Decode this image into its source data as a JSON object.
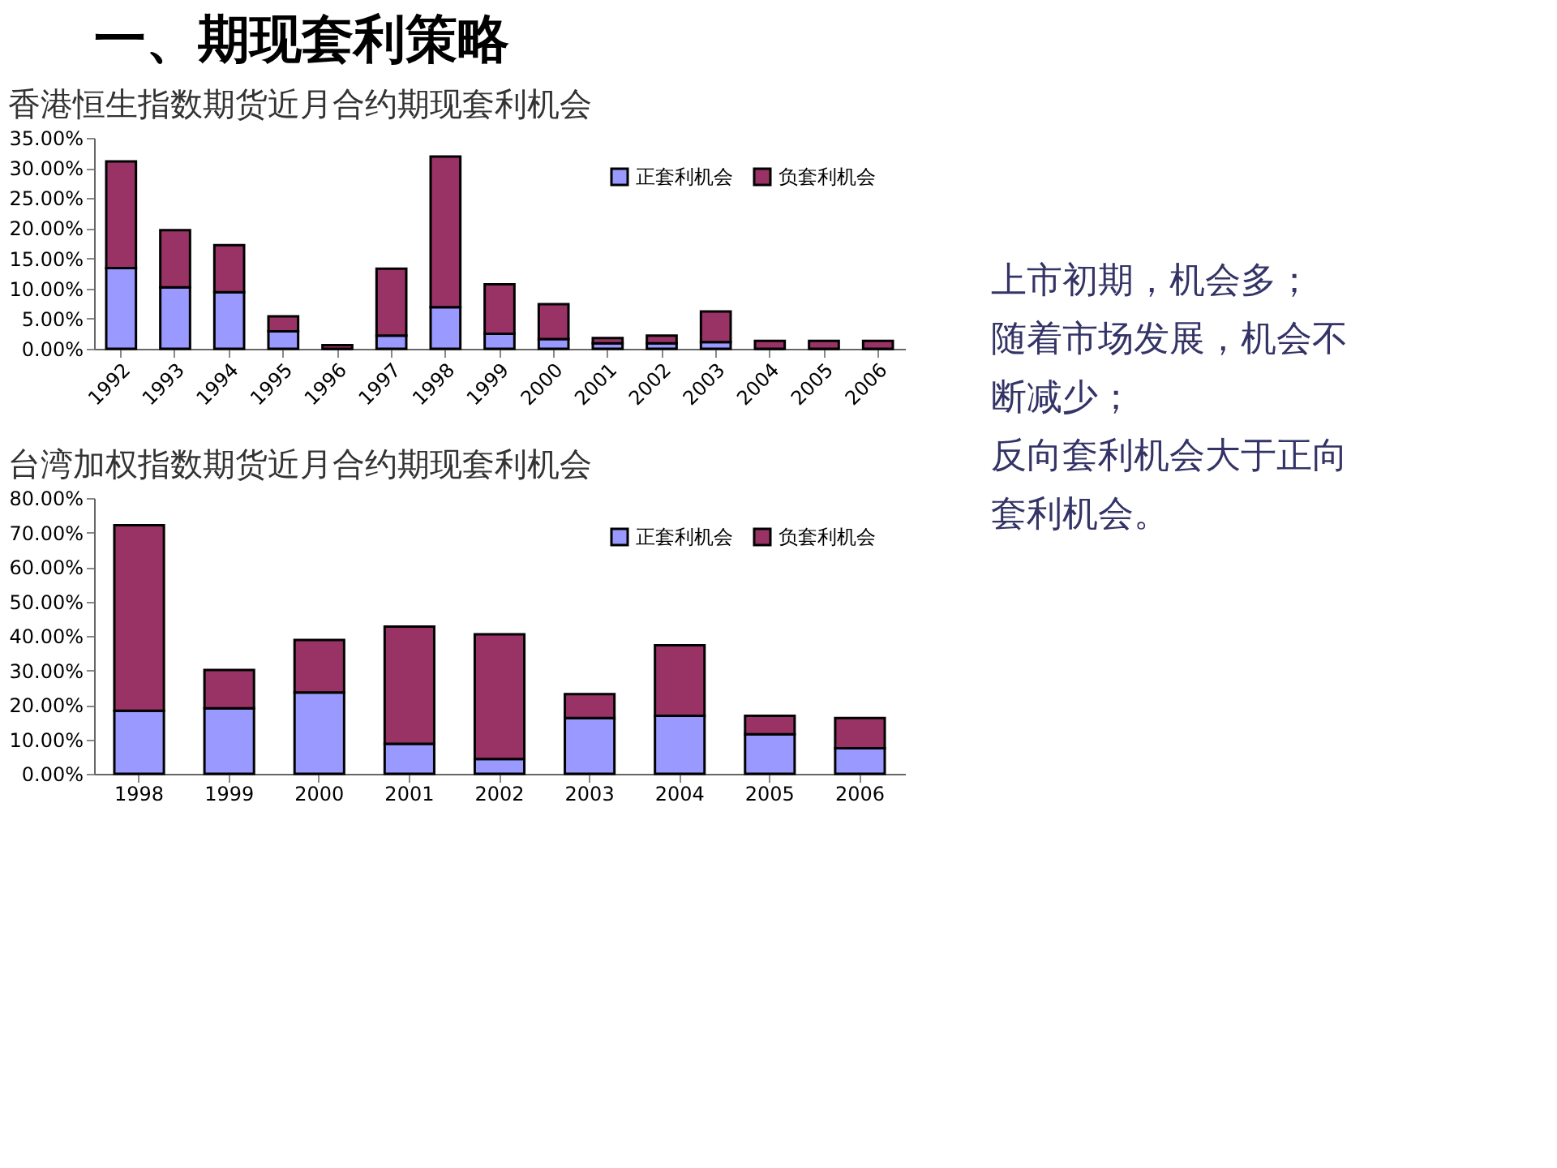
{
  "chart_data": [
    {
      "type": "other",
      "title": "一、期现套利策略"
    },
    {
      "type": "bar",
      "stacked": true,
      "title": "香港恒生指数期货近月合约期现套利机会",
      "legend": "top right",
      "grid": false,
      "categories": [
        "1992",
        "1993",
        "1994",
        "1995",
        "1996",
        "1997",
        "1998",
        "1999",
        "2000",
        "2001",
        "2002",
        "2003",
        "2004",
        "2005",
        "2006"
      ],
      "ylim": [
        0,
        35
      ],
      "yticks": [
        {
          "value": 0,
          "label": "0.00%"
        },
        {
          "value": 5,
          "label": "5.00%"
        },
        {
          "value": 10,
          "label": "10.00%"
        },
        {
          "value": 15,
          "label": "15.00%"
        },
        {
          "value": 20,
          "label": "20.00%"
        },
        {
          "value": 25,
          "label": "25.00%"
        },
        {
          "value": 30,
          "label": "30.00%"
        },
        {
          "value": 35,
          "label": "35.00%"
        }
      ],
      "series": [
        {
          "name": "正套利机会",
          "color": "#9999ff",
          "values": [
            13.4,
            10.2,
            9.4,
            2.9,
            0,
            2.2,
            6.9,
            2.5,
            1.6,
            0.9,
            0.9,
            1.1,
            0,
            0,
            0
          ]
        },
        {
          "name": "负套利机会",
          "color": "#993366",
          "values": [
            17.7,
            9.5,
            7.8,
            2.5,
            0.6,
            11.1,
            25.0,
            8.2,
            5.8,
            0.9,
            1.3,
            5.1,
            1.3,
            1.3,
            1.3
          ]
        }
      ]
    },
    {
      "type": "other",
      "annotations": [
        "上市初期，机会多；",
        "随着市场发展，机会不",
        "断减少；",
        "反向套利机会大于正向",
        "套利机会。"
      ]
    },
    {
      "type": "bar",
      "stacked": true,
      "title": "台湾加权指数期货近月合约期现套利机会",
      "legend": "top right",
      "grid": false,
      "categories": [
        "1998",
        "1999",
        "2000",
        "2001",
        "2002",
        "2003",
        "2004",
        "2005",
        "2006"
      ],
      "ylim": [
        0,
        80
      ],
      "yticks": [
        {
          "value": 0,
          "label": "0.00%"
        },
        {
          "value": 10,
          "label": "10.00%"
        },
        {
          "value": 20,
          "label": "20.00%"
        },
        {
          "value": 30,
          "label": "30.00%"
        },
        {
          "value": 40,
          "label": "40.00%"
        },
        {
          "value": 50,
          "label": "50.00%"
        },
        {
          "value": 60,
          "label": "60.00%"
        },
        {
          "value": 70,
          "label": "70.00%"
        },
        {
          "value": 80,
          "label": "80.00%"
        }
      ],
      "series": [
        {
          "name": "正套利机会",
          "color": "#9999ff",
          "values": [
            18.3,
            19.0,
            23.6,
            8.7,
            4.3,
            16.2,
            16.8,
            11.5,
            7.4
          ]
        },
        {
          "name": "负套利机会",
          "color": "#993366",
          "values": [
            53.8,
            11.1,
            15.2,
            34.0,
            36.2,
            6.9,
            20.5,
            5.3,
            8.8
          ]
        }
      ]
    }
  ]
}
